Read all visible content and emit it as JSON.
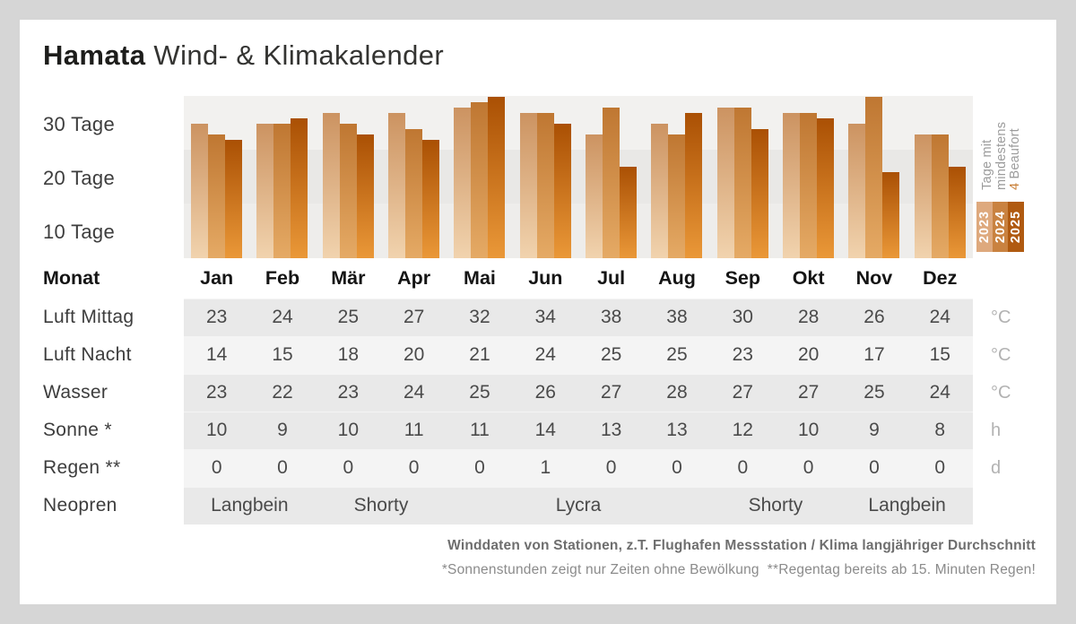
{
  "title": {
    "brand": "Hamata",
    "rest": " Wind- & Klimakalender"
  },
  "chart_data": {
    "type": "bar",
    "title": "Tage mit mindestens 4 Beaufort",
    "categories": [
      "Jan",
      "Feb",
      "Mär",
      "Apr",
      "Mai",
      "Jun",
      "Jul",
      "Aug",
      "Sep",
      "Okt",
      "Nov",
      "Dez"
    ],
    "series": [
      {
        "name": "2023",
        "values": [
          25,
          25,
          27,
          27,
          28,
          27,
          23,
          25,
          28,
          27,
          25,
          23
        ]
      },
      {
        "name": "2024",
        "values": [
          23,
          25,
          25,
          24,
          29,
          27,
          28,
          23,
          28,
          27,
          30,
          23
        ]
      },
      {
        "name": "2025",
        "values": [
          22,
          26,
          23,
          22,
          30,
          25,
          17,
          27,
          24,
          26,
          16,
          17
        ]
      }
    ],
    "ylabel": "Tage",
    "ylim": [
      0,
      30
    ],
    "yticks": [
      "30 Tage",
      "20 Tage",
      "10 Tage"
    ],
    "grid": "horizontal-bands",
    "legend_position": "right-rotated"
  },
  "side_label": {
    "line1": "Tage mit",
    "line2": "mindestens",
    "line3_highlight": "4",
    "line3_rest": " Beaufort"
  },
  "legend_years": [
    "2023",
    "2024",
    "2025"
  ],
  "table": {
    "month_label": "Monat",
    "months": [
      "Jan",
      "Feb",
      "Mär",
      "Apr",
      "Mai",
      "Jun",
      "Jul",
      "Aug",
      "Sep",
      "Okt",
      "Nov",
      "Dez"
    ],
    "rows": [
      {
        "label": "Luft Mittag",
        "values": [
          "23",
          "24",
          "25",
          "27",
          "32",
          "34",
          "38",
          "38",
          "30",
          "28",
          "26",
          "24"
        ],
        "unit": "°C",
        "shade": "dark"
      },
      {
        "label": "Luft Nacht",
        "values": [
          "14",
          "15",
          "18",
          "20",
          "21",
          "24",
          "25",
          "25",
          "23",
          "20",
          "17",
          "15"
        ],
        "unit": "°C",
        "shade": "light"
      },
      {
        "label": "Wasser",
        "values": [
          "23",
          "22",
          "23",
          "24",
          "25",
          "26",
          "27",
          "28",
          "27",
          "27",
          "25",
          "24"
        ],
        "unit": "°C",
        "shade": "dark"
      },
      {
        "label": "Sonne *",
        "values": [
          "10",
          "9",
          "10",
          "11",
          "11",
          "14",
          "13",
          "13",
          "12",
          "10",
          "9",
          "8"
        ],
        "unit": "h",
        "shade": "dark"
      },
      {
        "label": "Regen **",
        "values": [
          "0",
          "0",
          "0",
          "0",
          "0",
          "1",
          "0",
          "0",
          "0",
          "0",
          "0",
          "0"
        ],
        "unit": "d",
        "shade": "light"
      }
    ],
    "neopren": {
      "label": "Neopren",
      "shade": "dark",
      "segments": [
        {
          "text": "Langbein",
          "from": 0,
          "to": 1
        },
        {
          "text": "Shorty",
          "from": 2,
          "to": 3
        },
        {
          "text": "Lycra",
          "from": 4,
          "to": 7
        },
        {
          "text": "Shorty",
          "from": 8,
          "to": 9
        },
        {
          "text": "Langbein",
          "from": 10,
          "to": 11
        }
      ]
    }
  },
  "footer": {
    "line1": "Winddaten von Stationen, z.T. Flughafen Messstation / Klima langjähriger Durchschnitt",
    "line2": "*Sonnenstunden zeigt nur Zeiten ohne Bewölkung  **Regentag bereits ab 15. Minuten Regen!"
  },
  "colors": {
    "year_2023": "#dea97d",
    "year_2024": "#c98240",
    "year_2025": "#b05a10",
    "accent_orange": "#c87e35",
    "band_light": "#f2f1ef",
    "band_dark": "#e9e8e6",
    "row_dark": "#e9e9e9",
    "row_light": "#f4f4f4"
  }
}
